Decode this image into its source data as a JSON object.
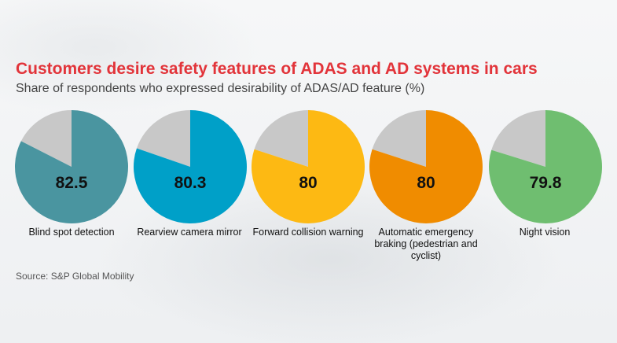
{
  "title": "Customers desire safety features of ADAS and AD systems in cars",
  "subtitle": "Share of respondents who expressed desirability of ADAS/AD feature (%)",
  "source": "Source: S&P Global Mobility",
  "chart_data": {
    "type": "pie",
    "title": "Customers desire safety features of ADAS and AD systems in cars",
    "subtitle": "Share of respondents who expressed desirability of ADAS/AD feature (%)",
    "remainder_color": "#c8c8c8",
    "items": [
      {
        "label": "Blind spot detection",
        "value": 82.5,
        "value_label": "82.5",
        "color": "#4a95a0"
      },
      {
        "label": "Rearview camera mirror",
        "value": 80.3,
        "value_label": "80.3",
        "color": "#00a0c8"
      },
      {
        "label": "Forward collision warning",
        "value": 80,
        "value_label": "80",
        "color": "#fdb913"
      },
      {
        "label": "Automatic emergency braking (pedestrian and cyclist)",
        "value": 80,
        "value_label": "80",
        "color": "#f08c00"
      },
      {
        "label": "Night vision",
        "value": 79.8,
        "value_label": "79.8",
        "color": "#6fbe70"
      }
    ]
  }
}
